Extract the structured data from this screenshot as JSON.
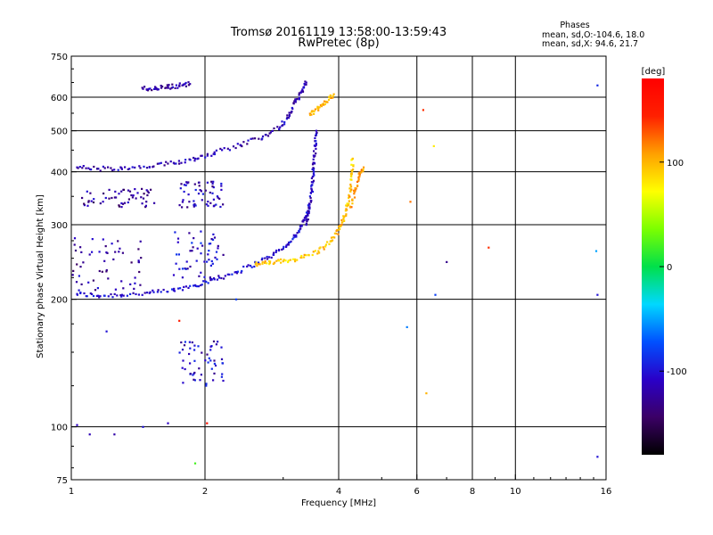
{
  "header": {
    "title_line1": "Tromsø 20161119 13:58:00-13:59:43",
    "title_line2": "RwPretec (8p)",
    "phase_title": "Phases",
    "phase_o": "mean, sd,O:-104.6, 18.0",
    "phase_x": "mean, sd,X:  94.6, 21.7"
  },
  "chart_data": {
    "type": "scatter",
    "title": "Tromsø 20161119 13:58:00-13:59:43",
    "subtitle": "RwPretec (8p)",
    "xlabel": "Frequency [MHz]",
    "ylabel": "Stationary phase Virtual Height [km]",
    "xscale": "log",
    "yscale": "log",
    "xlim": [
      1,
      16
    ],
    "ylim": [
      75,
      750
    ],
    "x_ticks": [
      1,
      2,
      4,
      6,
      8,
      10,
      16
    ],
    "x_tick_labels": [
      "1",
      "2",
      "4",
      "6",
      "8",
      "10",
      "16"
    ],
    "y_ticks": [
      75,
      100,
      200,
      300,
      400,
      500,
      600,
      750
    ],
    "y_tick_labels": [
      "75",
      "100",
      "200",
      "300",
      "400",
      "500",
      "600",
      "750"
    ],
    "grid": true,
    "colorbar": {
      "label": "[deg]",
      "range": [
        -180,
        180
      ],
      "ticks": [
        -100,
        0,
        100
      ],
      "tick_labels": [
        "-100",
        "0",
        "100"
      ],
      "colors": [
        "#000000",
        "#3b0066",
        "#2a00c8",
        "#0050ff",
        "#00d8ff",
        "#00e04a",
        "#7cff00",
        "#ffff00",
        "#ffa000",
        "#ff2000",
        "#ff0000"
      ]
    },
    "traces": [
      {
        "name": "O-F-trace",
        "phase": -104.6,
        "points": [
          [
            1.03,
            206
          ],
          [
            1.15,
            204
          ],
          [
            1.3,
            205
          ],
          [
            1.5,
            207
          ],
          [
            1.7,
            210
          ],
          [
            1.9,
            216
          ],
          [
            2.1,
            223
          ],
          [
            2.35,
            232
          ],
          [
            2.6,
            243
          ],
          [
            2.85,
            255
          ],
          [
            3.05,
            268
          ],
          [
            3.2,
            283
          ],
          [
            3.3,
            298
          ],
          [
            3.38,
            315
          ],
          [
            3.44,
            335
          ]
        ]
      },
      {
        "name": "X-F-trace",
        "phase": 94.6,
        "points": [
          [
            2.6,
            242
          ],
          [
            2.8,
            244
          ],
          [
            3.0,
            246
          ],
          [
            3.3,
            251
          ],
          [
            3.6,
            260
          ],
          [
            3.85,
            275
          ],
          [
            4.0,
            292
          ],
          [
            4.1,
            310
          ],
          [
            4.18,
            332
          ],
          [
            4.25,
            360
          ],
          [
            4.28,
            395
          ],
          [
            4.3,
            430
          ]
        ]
      },
      {
        "name": "O-spread-F-cusp",
        "phase": -110,
        "points": [
          [
            3.38,
            300
          ],
          [
            3.44,
            330
          ],
          [
            3.48,
            360
          ],
          [
            3.5,
            390
          ],
          [
            3.52,
            420
          ],
          [
            3.54,
            460
          ],
          [
            3.56,
            500
          ]
        ]
      },
      {
        "name": "X-spread-F-cusp",
        "phase": 110,
        "points": [
          [
            4.25,
            330
          ],
          [
            4.35,
            360
          ],
          [
            4.45,
            390
          ],
          [
            4.55,
            410
          ]
        ]
      },
      {
        "name": "O-2F-trace",
        "phase": -115,
        "points": [
          [
            1.03,
            410
          ],
          [
            1.15,
            407
          ],
          [
            1.3,
            406
          ],
          [
            1.5,
            411
          ],
          [
            1.7,
            420
          ],
          [
            1.9,
            430
          ],
          [
            2.1,
            445
          ],
          [
            2.4,
            463
          ],
          [
            2.7,
            485
          ],
          [
            2.95,
            510
          ],
          [
            3.1,
            545
          ],
          [
            3.2,
            585
          ],
          [
            3.3,
            620
          ],
          [
            3.38,
            650
          ]
        ]
      },
      {
        "name": "X-2F-trace",
        "phase": 100,
        "points": [
          [
            3.45,
            545
          ],
          [
            3.6,
            565
          ],
          [
            3.75,
            585
          ],
          [
            3.9,
            610
          ]
        ]
      },
      {
        "name": "O-3F-trace",
        "phase": -120,
        "points": [
          [
            1.45,
            628
          ],
          [
            1.55,
            631
          ],
          [
            1.65,
            635
          ],
          [
            1.75,
            640
          ],
          [
            1.85,
            645
          ]
        ]
      }
    ],
    "clusters": [
      {
        "name": "low-frequency-scatter",
        "phase": -120,
        "x_range": [
          1.0,
          1.45
        ],
        "y_range": [
          210,
          280
        ]
      },
      {
        "name": "low-frequency-scatter-2",
        "phase": -125,
        "x_range": [
          1.05,
          1.55
        ],
        "y_range": [
          330,
          365
        ]
      },
      {
        "name": "mid-scatter",
        "phase": -105,
        "x_range": [
          1.7,
          2.2
        ],
        "y_range": [
          220,
          290
        ]
      },
      {
        "name": "mid-scatter-2",
        "phase": -115,
        "x_range": [
          1.75,
          2.2
        ],
        "y_range": [
          330,
          380
        ]
      },
      {
        "name": "E-region-scatter",
        "phase": -110,
        "x_range": [
          1.75,
          2.2
        ],
        "y_range": [
          125,
          160
        ]
      }
    ],
    "isolated_points": [
      {
        "x": 6.2,
        "y": 560,
        "phase": 140
      },
      {
        "x": 6.3,
        "y": 120,
        "phase": 100
      },
      {
        "x": 6.55,
        "y": 460,
        "phase": 80
      },
      {
        "x": 8.7,
        "y": 265,
        "phase": 140
      },
      {
        "x": 15.3,
        "y": 640,
        "phase": -90
      },
      {
        "x": 15.2,
        "y": 260,
        "phase": -50
      },
      {
        "x": 15.3,
        "y": 205,
        "phase": -100
      },
      {
        "x": 15.3,
        "y": 85,
        "phase": -100
      },
      {
        "x": 1.0,
        "y": 105,
        "phase": -120
      },
      {
        "x": 1.03,
        "y": 101,
        "phase": -110
      },
      {
        "x": 1.1,
        "y": 96,
        "phase": -115
      },
      {
        "x": 1.25,
        "y": 96,
        "phase": -120
      },
      {
        "x": 1.45,
        "y": 100,
        "phase": -100
      },
      {
        "x": 1.65,
        "y": 102,
        "phase": -110
      },
      {
        "x": 1.9,
        "y": 82,
        "phase": 20
      },
      {
        "x": 1.75,
        "y": 178,
        "phase": 150
      },
      {
        "x": 2.02,
        "y": 102,
        "phase": 160
      },
      {
        "x": 5.7,
        "y": 172,
        "phase": -60
      },
      {
        "x": 6.6,
        "y": 205,
        "phase": -80
      },
      {
        "x": 7.0,
        "y": 245,
        "phase": -130
      },
      {
        "x": 5.8,
        "y": 340,
        "phase": 120
      },
      {
        "x": 2.35,
        "y": 200,
        "phase": -80
      },
      {
        "x": 1.2,
        "y": 168,
        "phase": -100
      }
    ]
  }
}
